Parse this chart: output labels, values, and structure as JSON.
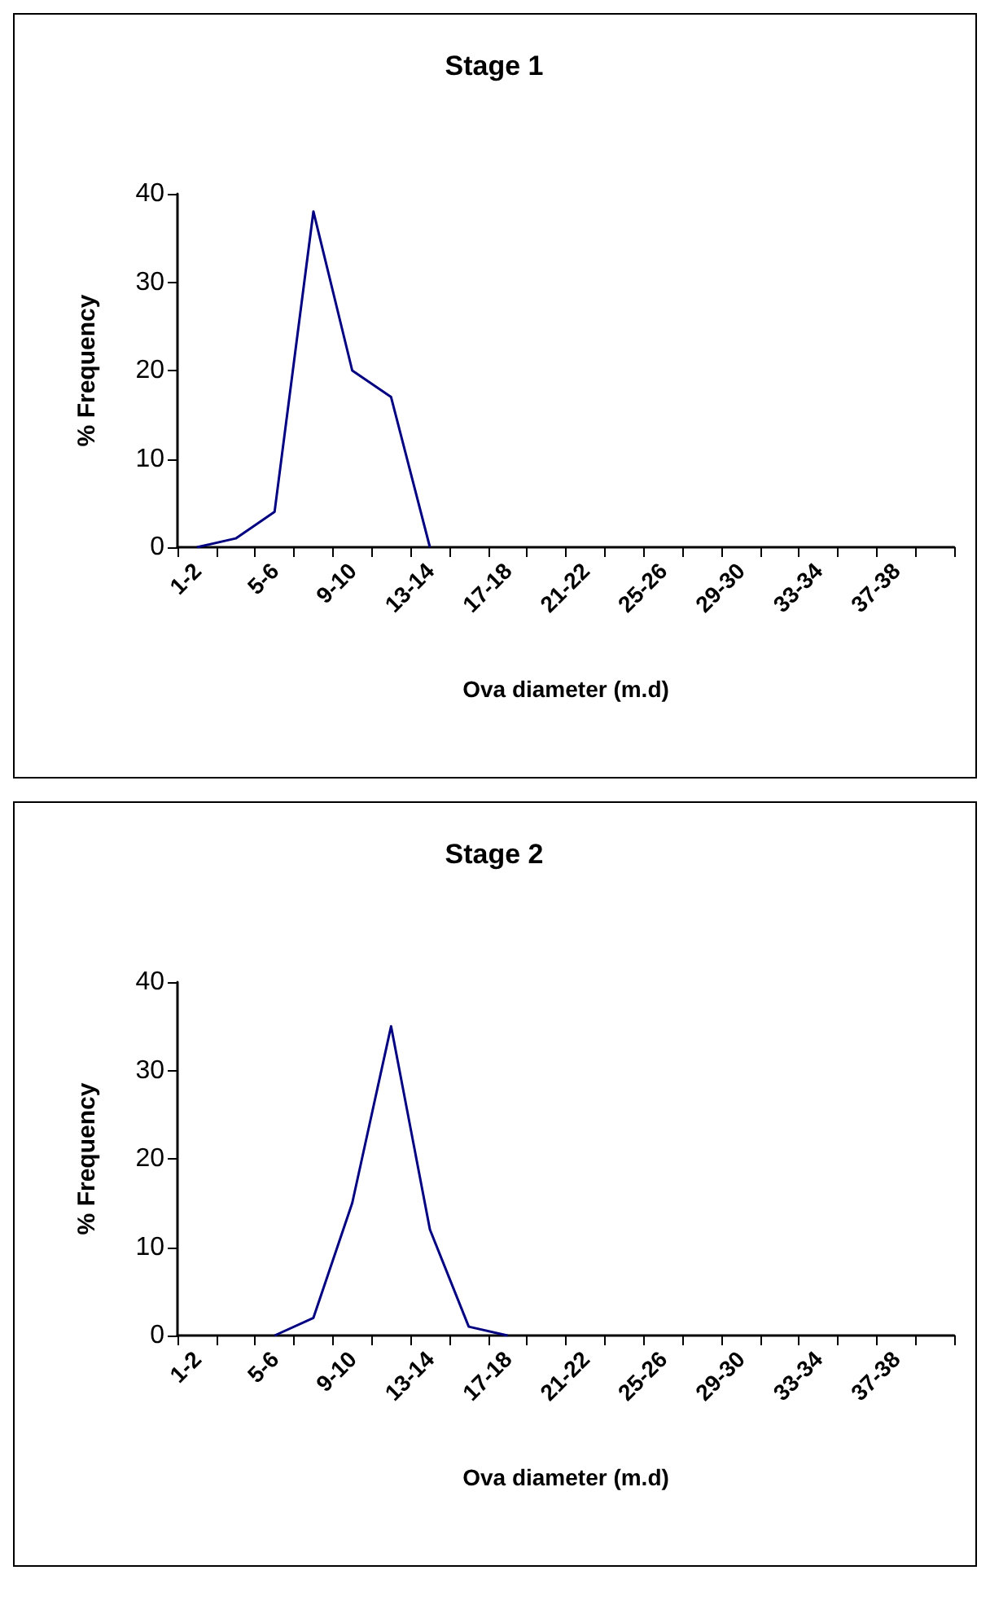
{
  "chart_data": [
    {
      "type": "line",
      "title": "Stage 1",
      "xlabel": "Ova diameter (m.d)",
      "ylabel": "% Frequency",
      "categories": [
        "1-2",
        null,
        "5-6",
        null,
        "9-10",
        null,
        "13-14",
        null,
        "17-18",
        null,
        "21-22",
        null,
        "25-26",
        null,
        "29-30",
        null,
        "33-34",
        null,
        "37-38",
        null
      ],
      "series": [
        {
          "color": "#000080",
          "values": [
            0,
            1,
            4,
            38,
            20,
            17,
            0,
            null,
            null,
            null,
            null,
            null,
            null,
            null,
            null,
            null,
            null,
            null,
            null,
            null
          ]
        }
      ],
      "ylim": [
        0,
        40
      ],
      "yticks": [
        0,
        10,
        20,
        30,
        40
      ],
      "marker": "none"
    },
    {
      "type": "line",
      "title": "Stage 2",
      "xlabel": "Ova diameter (m.d)",
      "ylabel": "% Frequency",
      "categories": [
        "1-2",
        null,
        "5-6",
        null,
        "9-10",
        null,
        "13-14",
        null,
        "17-18",
        null,
        "21-22",
        null,
        "25-26",
        null,
        "29-30",
        null,
        "33-34",
        null,
        "37-38",
        null
      ],
      "series": [
        {
          "color": "#000080",
          "values": [
            null,
            null,
            0,
            2,
            15,
            35,
            12,
            1,
            0,
            null,
            null,
            null,
            null,
            null,
            null,
            null,
            null,
            null,
            null,
            null
          ]
        }
      ],
      "ylim": [
        0,
        40
      ],
      "yticks": [
        0,
        10,
        20,
        30,
        40
      ],
      "marker": "none"
    }
  ]
}
